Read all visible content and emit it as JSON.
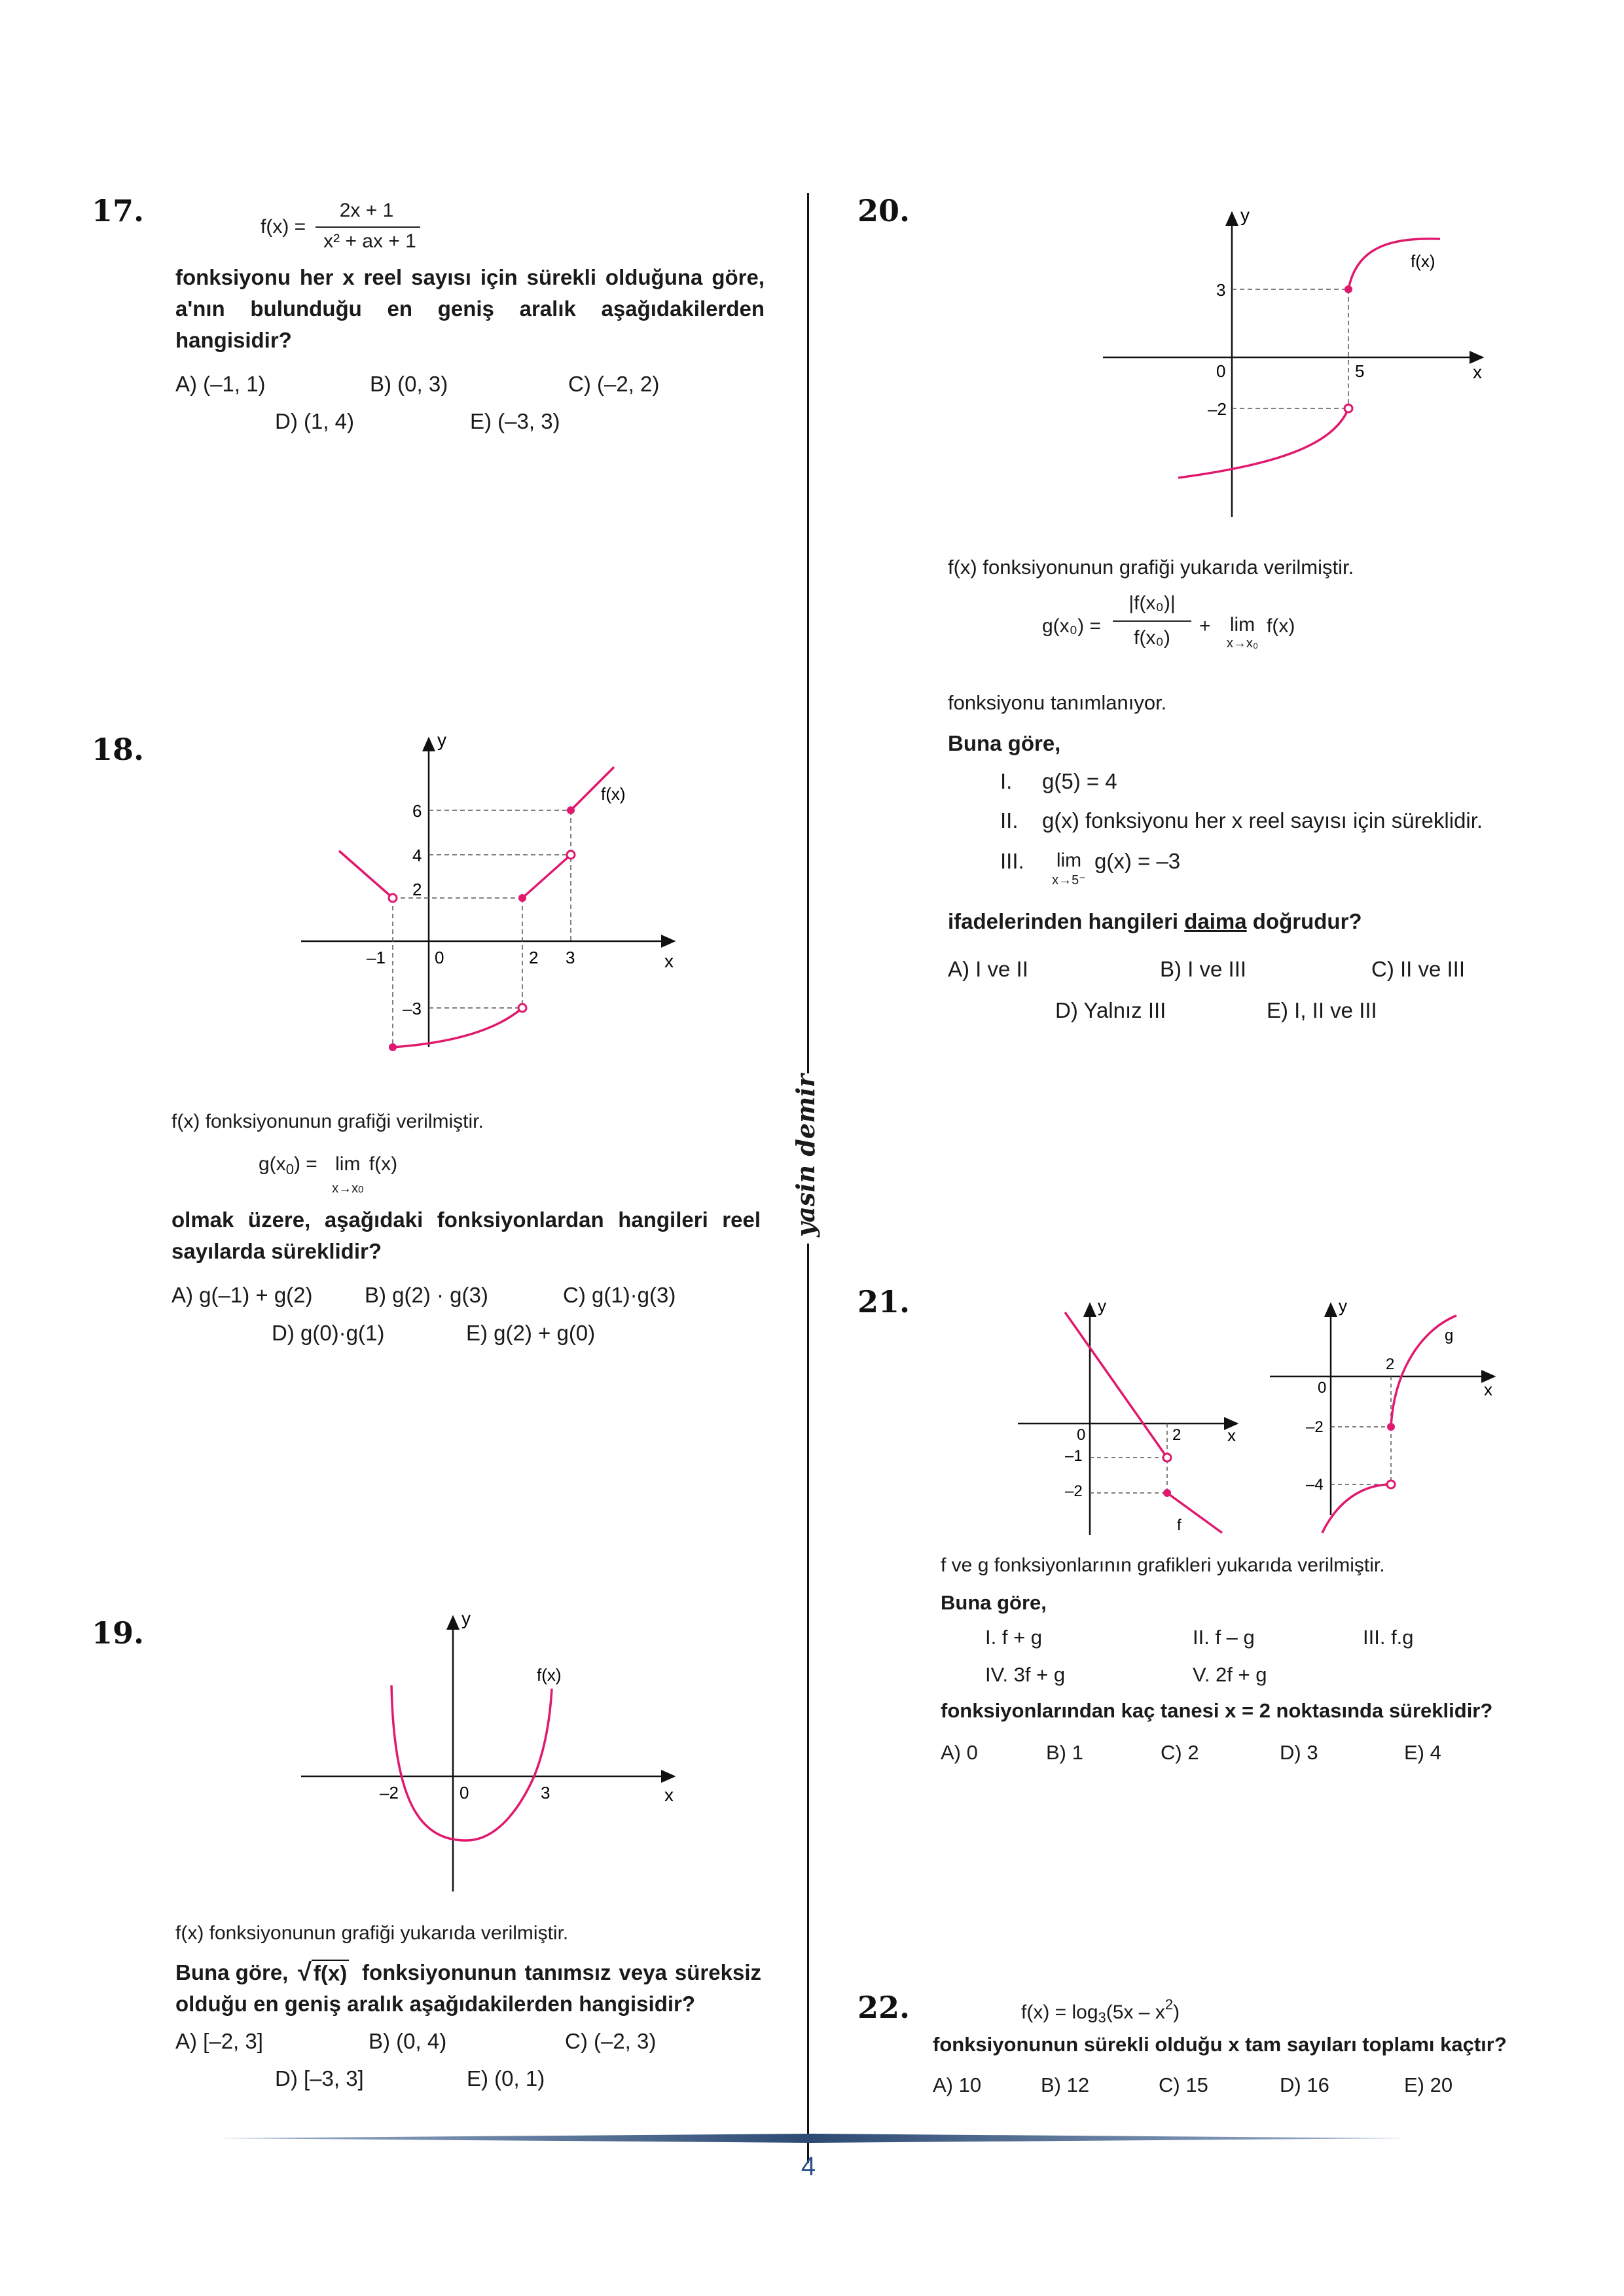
{
  "divider_signature": "yasin demir",
  "page_number": "4",
  "accent_color": "#e0196e",
  "q17": {
    "number": "17.",
    "fx_label": "f(x) =",
    "numerator": "2x + 1",
    "denominator": "x² + ax + 1",
    "stem": "fonksiyonu her x reel sayısı için sürekli olduğuna göre, a'nın bulunduğu en geniş aralık aşağıdakilerden hangisidir?",
    "options": [
      "A) (–1, 1)",
      "B) (0, 3)",
      "C) (–2, 2)",
      "D) (1, 4)",
      "E) (–3, 3)"
    ]
  },
  "q18": {
    "number": "18.",
    "graph": {
      "y_label": "y",
      "x_label": "x",
      "curve_label": "f(x)",
      "x_ticks": [
        "–1",
        "0",
        "2",
        "3"
      ],
      "y_ticks": [
        "6",
        "4",
        "2",
        "–3"
      ]
    },
    "intro": "f(x) fonksiyonunun grafiği verilmiştir.",
    "def_left": "g(x",
    "def_sub": "0",
    "def_mid": ") =",
    "def_lim": "lim",
    "def_limsub": "x→x",
    "def_limsub0": "0",
    "def_fx": "f(x)",
    "stem": "olmak üzere, aşağıdaki fonksiyonlardan hangileri reel sayılarda süreklidir?",
    "options": [
      "A) g(–1) + g(2)",
      "B) g(2) · g(3)",
      "C) g(1)·g(3)",
      "D) g(0)·g(1)",
      "E) g(2) + g(0)"
    ]
  },
  "q19": {
    "number": "19.",
    "graph": {
      "y_label": "y",
      "x_label": "x",
      "curve_label": "f(x)",
      "x_ticks": [
        "–2",
        "0",
        "3"
      ]
    },
    "intro": "f(x) fonksiyonunun grafiği yukarıda verilmiştir.",
    "stem_a": "Buna göre,",
    "sqrt_arg": "f(x)",
    "stem_b": "fonksiyonunun tanımsız veya süreksiz olduğu en geniş aralık aşağıdakilerden hangisidir?",
    "options": [
      "A) [–2, 3]",
      "B) (0, 4)",
      "C) (–2, 3)",
      "D) [–3, 3]",
      "E) (0, 1)"
    ]
  },
  "q20": {
    "number": "20.",
    "graph": {
      "y_label": "y",
      "x_label": "x",
      "curve_label": "f(x)",
      "x_ticks": [
        "0",
        "5"
      ],
      "y_ticks": [
        "3",
        "–2"
      ]
    },
    "intro": "f(x) fonksiyonunun grafiği yukarıda verilmiştir.",
    "def_lhs": "g(x₀) =",
    "def_num": "|f(x₀)|",
    "def_den": "f(x₀)",
    "def_plus": "+",
    "def_lim": "lim",
    "def_limsub": "x→x₀",
    "def_fx": "f(x)",
    "defined": "fonksiyonu tanımlanıyor.",
    "buna": "Buna göre,",
    "items": [
      {
        "roman": "I.",
        "text": "g(5) = 4"
      },
      {
        "roman": "II.",
        "text": "g(x) fonksiyonu her x reel sayısı için süreklidir."
      },
      {
        "roman": "III.",
        "text": "g(x) = –3",
        "lim": "lim",
        "limsub": "x→5⁻"
      }
    ],
    "stem_pre": "ifadelerinden hangileri ",
    "stem_u": "daima",
    "stem_post": " doğrudur?",
    "options": [
      "A) I ve II",
      "B) I ve III",
      "C) II ve III",
      "D) Yalnız III",
      "E) I, II ve III"
    ]
  },
  "q21": {
    "number": "21.",
    "graph_f": {
      "y_label": "y",
      "x_label": "x",
      "curve_label": "f",
      "x_ticks": [
        "0",
        "2"
      ],
      "y_ticks": [
        "–1",
        "–2"
      ]
    },
    "graph_g": {
      "y_label": "y",
      "x_label": "x",
      "curve_label": "g",
      "x_ticks": [
        "0",
        "2"
      ],
      "y_ticks": [
        "–2",
        "–4"
      ]
    },
    "intro": "f ve g fonksiyonlarının grafikleri yukarıda verilmiştir.",
    "buna": "Buna göre,",
    "items": [
      "I. f + g",
      "II. f – g",
      "III. f.g",
      "IV. 3f + g",
      "V. 2f + g"
    ],
    "stem": "fonksiyonlarından kaç tanesi x = 2 noktasında süreklidir?",
    "options": [
      "A) 0",
      "B) 1",
      "C) 2",
      "D) 3",
      "E) 4"
    ]
  },
  "q22": {
    "number": "22.",
    "formula_a": "f(x) = log",
    "formula_sub": "3",
    "formula_b": "(5x – x",
    "formula_sup": "2",
    "formula_c": ")",
    "stem": "fonksiyonunun sürekli olduğu x tam sayıları toplamı kaçtır?",
    "options": [
      "A) 10",
      "B) 12",
      "C) 15",
      "D) 16",
      "E) 20"
    ]
  }
}
